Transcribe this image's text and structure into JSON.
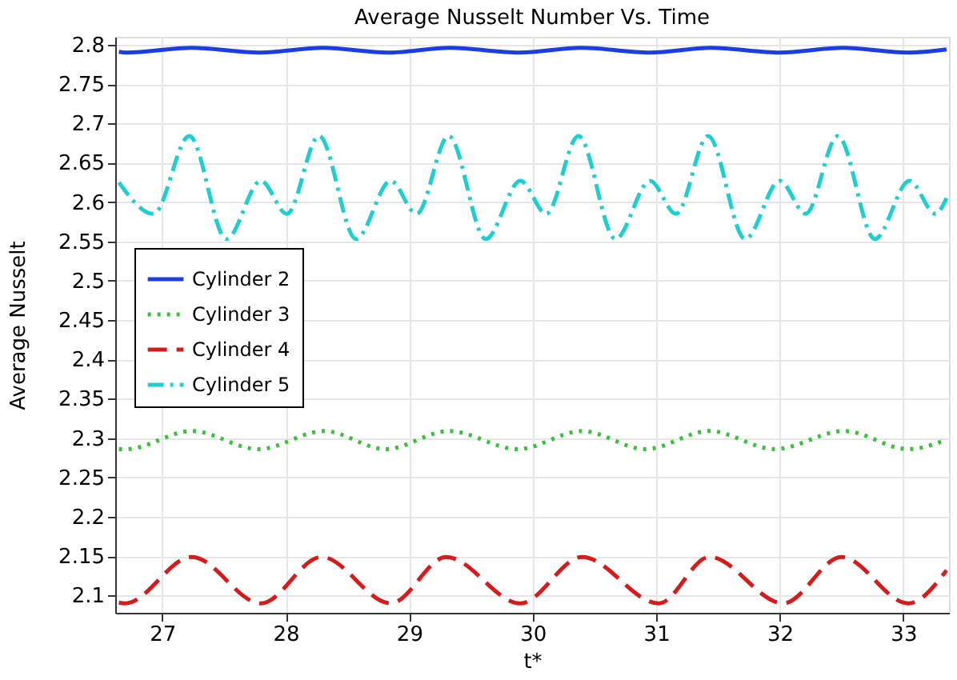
{
  "chart_data": {
    "type": "line",
    "title": "Average Nusselt Number Vs. Time",
    "xlabel": "t*",
    "ylabel": "Average Nusselt",
    "xlim": [
      26.62,
      33.37
    ],
    "xticks": [
      27,
      28,
      29,
      30,
      31,
      32,
      33
    ],
    "ylim": [
      2.078,
      2.81
    ],
    "yticks": [
      2.1,
      2.15,
      2.2,
      2.25,
      2.3,
      2.35,
      2.4,
      2.45,
      2.5,
      2.55,
      2.6,
      2.65,
      2.7,
      2.75,
      2.8
    ],
    "grid": true,
    "legend": "left",
    "marker": "none",
    "series": [
      {
        "name": "Cylinder 2",
        "color": "#1a3ee6",
        "line_style": "solid",
        "x": [
          26.65,
          26.71,
          27.24,
          27.79,
          28.3,
          28.83,
          29.33,
          29.89,
          30.39,
          30.95,
          31.44,
          32.0,
          32.51,
          33.04,
          33.35
        ],
        "values": [
          2.791,
          2.79,
          2.796,
          2.79,
          2.796,
          2.79,
          2.796,
          2.79,
          2.796,
          2.79,
          2.796,
          2.79,
          2.796,
          2.79,
          2.794
        ]
      },
      {
        "name": "Cylinder 3",
        "color": "#3cbf3c",
        "line_style": "dotted",
        "x": [
          26.65,
          26.71,
          27.24,
          27.78,
          28.31,
          28.81,
          29.32,
          29.88,
          30.4,
          30.91,
          31.43,
          31.96,
          32.52,
          33.04,
          33.35
        ],
        "values": [
          2.286,
          2.286,
          2.309,
          2.286,
          2.309,
          2.286,
          2.309,
          2.286,
          2.309,
          2.286,
          2.309,
          2.286,
          2.309,
          2.286,
          2.298
        ]
      },
      {
        "name": "Cylinder 4",
        "color": "#d41c1c",
        "line_style": "dashed",
        "x": [
          26.65,
          26.7,
          27.24,
          27.8,
          28.29,
          28.85,
          29.3,
          29.9,
          30.4,
          31.02,
          31.43,
          32.03,
          32.5,
          33.04,
          33.35
        ],
        "values": [
          2.091,
          2.09,
          2.149,
          2.09,
          2.149,
          2.09,
          2.149,
          2.09,
          2.149,
          2.09,
          2.149,
          2.09,
          2.149,
          2.09,
          2.132
        ]
      },
      {
        "name": "Cylinder 5",
        "color": "#1fcfcf",
        "line_style": "dashdot",
        "x": [
          26.65,
          26.93,
          27.22,
          27.52,
          27.8,
          28.01,
          28.27,
          28.57,
          28.85,
          29.06,
          29.32,
          29.62,
          29.9,
          30.11,
          30.37,
          30.67,
          30.95,
          31.16,
          31.42,
          31.72,
          32.0,
          32.21,
          32.47,
          32.77,
          33.05,
          33.26,
          33.35
        ],
        "values": [
          2.625,
          2.585,
          2.684,
          2.553,
          2.627,
          2.585,
          2.684,
          2.553,
          2.627,
          2.585,
          2.684,
          2.553,
          2.627,
          2.585,
          2.684,
          2.553,
          2.627,
          2.585,
          2.684,
          2.553,
          2.627,
          2.585,
          2.684,
          2.553,
          2.627,
          2.585,
          2.605
        ]
      }
    ]
  }
}
